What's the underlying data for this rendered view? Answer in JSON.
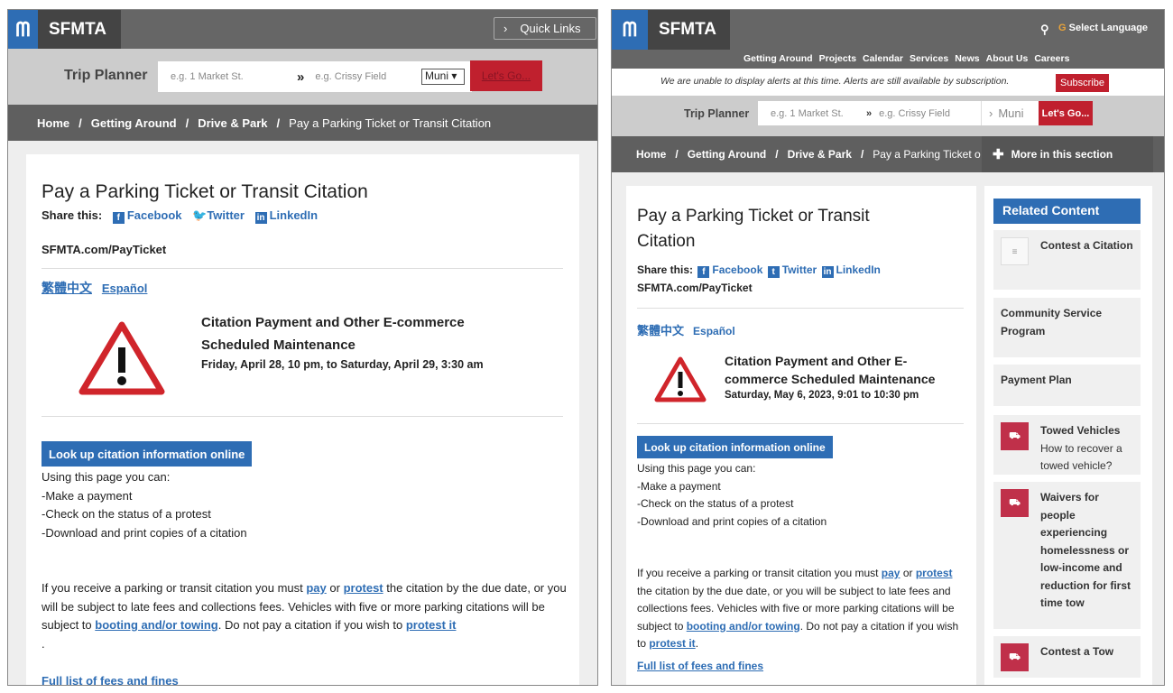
{
  "left": {
    "logo": "SFMTA",
    "quick_links": "Quick Links",
    "trip_planner": {
      "label": "Trip Planner",
      "from_placeholder": "e.g. 1 Market St.",
      "to_placeholder": "e.g. Crissy Field",
      "mode": "Muni",
      "go": "Let's Go..."
    },
    "breadcrumb": [
      "Home",
      "Getting Around",
      "Drive & Park",
      "Pay a Parking Ticket or Transit Citation"
    ],
    "title": "Pay a Parking Ticket or Transit Citation",
    "share_label": "Share this:",
    "share": [
      "Facebook",
      "Twitter",
      "LinkedIn"
    ],
    "short_url": "SFMTA.com/PayTicket",
    "languages": [
      "繁體中文",
      "Español"
    ],
    "notice": {
      "title": "Citation Payment and Other E-commerce Scheduled Maintenance",
      "date": "Friday, April 28, 10 pm, to Saturday, April 29, 3:30 am"
    },
    "lookup_button": "Look up citation information online",
    "intro": "Using this page you can:",
    "bullets": [
      "-Make a payment",
      "-Check on the status of a protest",
      "-Download and print copies of a citation"
    ],
    "para": {
      "t1": "If you receive a parking or transit citation you must ",
      "pay": "pay",
      "t2": " or ",
      "protest": "protest",
      "t3": " the citation by the due date, or you will be subject to late fees and collections fees. Vehicles with five or more parking citations will be subject to ",
      "booting": "booting and/or towing",
      "t4": ". Do not pay a citation if you wish to ",
      "protest_it": "protest it",
      "t5": "."
    },
    "fees_link": "Full list of fees and fines"
  },
  "right": {
    "logo": "SFMTA",
    "select_language": "Select Language",
    "nav": [
      "Getting Around",
      "Projects",
      "Calendar",
      "Services",
      "News",
      "About Us",
      "Careers"
    ],
    "alert": "We are unable to display alerts at this time. Alerts are still available by subscription.",
    "subscribe": "Subscribe",
    "trip_planner": {
      "label": "Trip Planner",
      "from_placeholder": "e.g. 1 Market St.",
      "to_placeholder": "e.g. Crissy Field",
      "mode": "Muni",
      "go": "Let's Go..."
    },
    "breadcrumb": [
      "Home",
      "Getting Around",
      "Drive & Park",
      "Pay a Parking Ticket o"
    ],
    "more_section": "More in this section",
    "title": "Pay a Parking Ticket or Transit Citation",
    "share_label": "Share this:",
    "share": [
      "Facebook",
      "Twitter",
      "LinkedIn"
    ],
    "short_url": "SFMTA.com/PayTicket",
    "languages": [
      "繁體中文",
      "Español"
    ],
    "notice": {
      "title": "Citation Payment and Other E-commerce Scheduled Maintenance",
      "date": "Saturday, May 6, 2023, 9:01 to 10:30 pm"
    },
    "lookup_button": "Look up citation information online",
    "intro": "Using this page you can:",
    "bullets": [
      "-Make a payment",
      "-Check on the status of a protest",
      "-Download and print copies of a citation"
    ],
    "para": {
      "t1": "If you receive a parking or transit citation you must ",
      "pay": "pay",
      "t2": " or ",
      "protest": "protest",
      "t3": " the citation by the due date, or you will be subject to late fees and collections fees. Vehicles with five or more parking citations will be subject to ",
      "booting": "booting and/or towing",
      "t4": ". Do not pay a citation if you wish to ",
      "protest_it": "protest it",
      "t5": "."
    },
    "fees_link": "Full list of fees and fines",
    "related": {
      "title": "Related Content",
      "items": [
        {
          "title": "Contest a Citation"
        },
        {
          "title": "Community Service Program"
        },
        {
          "title": "Payment Plan"
        },
        {
          "title": "Towed Vehicles",
          "sub": "How to recover a towed vehicle?"
        },
        {
          "title": "Waivers for people experiencing homelessness or low-income and reduction for first time tow"
        },
        {
          "title": "Contest a Tow"
        }
      ]
    }
  },
  "colors": {
    "brand_blue": "#2e6db4",
    "header_gray": "#666666",
    "go_red": "#c0202e"
  }
}
